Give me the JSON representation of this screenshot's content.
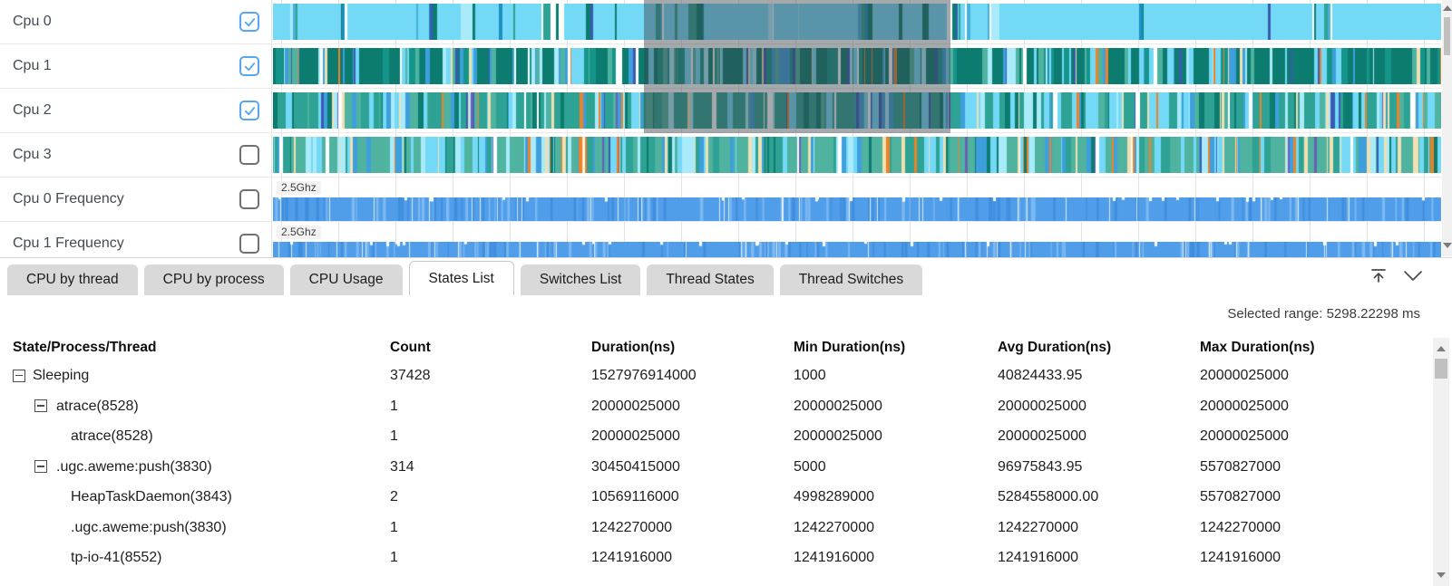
{
  "timeline": {
    "rows": [
      {
        "label": "Cpu 0",
        "checked": true,
        "type": "cpu",
        "palette": "cpu0"
      },
      {
        "label": "Cpu 1",
        "checked": true,
        "type": "cpu",
        "palette": "cpu1"
      },
      {
        "label": "Cpu 2",
        "checked": true,
        "type": "cpu",
        "palette": "cpu2"
      },
      {
        "label": "Cpu 3",
        "checked": false,
        "type": "cpu",
        "palette": "cpu3"
      },
      {
        "label": "Cpu 0 Frequency",
        "checked": false,
        "type": "freq",
        "axis_label": "2.5Ghz"
      },
      {
        "label": "Cpu 1 Frequency",
        "checked": false,
        "type": "freq",
        "axis_label": "2.5Ghz"
      }
    ],
    "checkbox_accent": "#57a6f2",
    "checkbox_glyph": "✓",
    "selection_overlay_color": "rgba(58,64,70,0.45)",
    "palettes": {
      "cpu0": [
        [
          "#74d9f7",
          0.46,
          30
        ],
        [
          "#a9eafb",
          0.08,
          14
        ],
        [
          "#0b7c6f",
          0.14,
          5
        ],
        [
          "#2ea294",
          0.08,
          5
        ],
        [
          "#47b0d8",
          0.06,
          4
        ],
        [
          "#3a5ab2",
          0.04,
          3
        ],
        [
          "#ffffff",
          0.08,
          6
        ],
        [
          "#1b8fbf",
          0.06,
          4
        ]
      ],
      "cpu1": [
        [
          "#0b7c6f",
          0.3,
          14
        ],
        [
          "#15958a",
          0.1,
          7
        ],
        [
          "#74d9f7",
          0.12,
          7
        ],
        [
          "#3f9fdc",
          0.1,
          5
        ],
        [
          "#a9eafb",
          0.06,
          5
        ],
        [
          "#3a5ab2",
          0.06,
          3
        ],
        [
          "#ef8224",
          0.05,
          3
        ],
        [
          "#f0e0b2",
          0.05,
          3
        ],
        [
          "#ffffff",
          0.05,
          4
        ],
        [
          "#4fb3a0",
          0.11,
          6
        ]
      ],
      "cpu2": [
        [
          "#2ea294",
          0.2,
          12
        ],
        [
          "#4fb3a0",
          0.12,
          8
        ],
        [
          "#74d9f7",
          0.15,
          8
        ],
        [
          "#3f9fdc",
          0.12,
          5
        ],
        [
          "#0b7c6f",
          0.12,
          6
        ],
        [
          "#a9eafb",
          0.06,
          5
        ],
        [
          "#ffffff",
          0.07,
          5
        ],
        [
          "#ef8224",
          0.05,
          3
        ],
        [
          "#f0e0b2",
          0.05,
          3
        ],
        [
          "#3a5ab2",
          0.04,
          3
        ],
        [
          "#6b5fb5",
          0.02,
          3
        ]
      ],
      "cpu3": [
        [
          "#4fb3a0",
          0.19,
          12
        ],
        [
          "#2ea294",
          0.13,
          8
        ],
        [
          "#74d9f7",
          0.13,
          7
        ],
        [
          "#3f9fdc",
          0.1,
          5
        ],
        [
          "#a9eafb",
          0.1,
          6
        ],
        [
          "#0b7c6f",
          0.07,
          4
        ],
        [
          "#ef8224",
          0.09,
          4
        ],
        [
          "#f0e0b2",
          0.09,
          4
        ],
        [
          "#ffffff",
          0.04,
          4
        ],
        [
          "#3a5ab2",
          0.03,
          3
        ],
        [
          "#6b5fb5",
          0.03,
          3
        ]
      ]
    },
    "freq_colors": {
      "base": "#509dea",
      "light": "#7db9f2",
      "dark": "#3f8ede"
    }
  },
  "tabs": {
    "items": [
      "CPU by thread",
      "CPU by process",
      "CPU Usage",
      "States List",
      "Switches List",
      "Thread States",
      "Thread Switches"
    ],
    "active": "States List",
    "toolbar_icons": [
      {
        "name": "scroll-to-top-icon",
        "glyph": "⤒"
      },
      {
        "name": "chevron-down-icon",
        "glyph": "⌄"
      }
    ]
  },
  "stats": {
    "selected_range_label": "Selected range: 5298.22298 ms"
  },
  "table": {
    "columns": [
      "State/Process/Thread",
      "Count",
      "Duration(ns)",
      "Min Duration(ns)",
      "Avg Duration(ns)",
      "Max Duration(ns)"
    ],
    "rows": [
      {
        "level": 0,
        "expander": true,
        "name": "Sleeping",
        "count": "37428",
        "duration": "1527976914000",
        "min": "1000",
        "avg": "40824433.95",
        "max": "20000025000"
      },
      {
        "level": 1,
        "expander": true,
        "name": "atrace(8528)",
        "count": "1",
        "duration": "20000025000",
        "min": "20000025000",
        "avg": "20000025000",
        "max": "20000025000"
      },
      {
        "level": 2,
        "expander": false,
        "name": "atrace(8528)",
        "count": "1",
        "duration": "20000025000",
        "min": "20000025000",
        "avg": "20000025000",
        "max": "20000025000"
      },
      {
        "level": 1,
        "expander": true,
        "name": ".ugc.aweme:push(3830)",
        "count": "314",
        "duration": "30450415000",
        "min": "5000",
        "avg": "96975843.95",
        "max": "5570827000"
      },
      {
        "level": 2,
        "expander": false,
        "name": "HeapTaskDaemon(3843)",
        "count": "2",
        "duration": "10569116000",
        "min": "4998289000",
        "avg": "5284558000.00",
        "max": "5570827000"
      },
      {
        "level": 2,
        "expander": false,
        "name": ".ugc.aweme:push(3830)",
        "count": "1",
        "duration": "1242270000",
        "min": "1242270000",
        "avg": "1242270000",
        "max": "1242270000"
      },
      {
        "level": 2,
        "expander": false,
        "name": "tp-io-41(8552)",
        "count": "1",
        "duration": "1241916000",
        "min": "1241916000",
        "avg": "1241916000",
        "max": "1241916000"
      }
    ]
  }
}
